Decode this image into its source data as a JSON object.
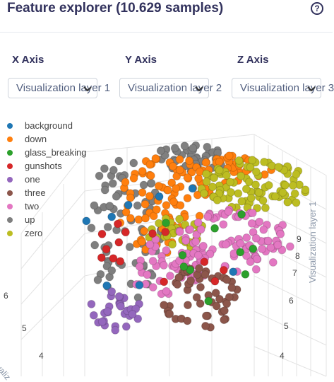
{
  "header": {
    "title": "Feature explorer (10.629 samples)",
    "help_icon": "help-circle-icon"
  },
  "axes": [
    {
      "label": "X Axis",
      "selected": "Visualization layer 1"
    },
    {
      "label": "Y Axis",
      "selected": "Visualization layer 2"
    },
    {
      "label": "Z Axis",
      "selected": "Visualization layer 3"
    }
  ],
  "legend": [
    {
      "name": "background",
      "color": "#1f77b4"
    },
    {
      "name": "down",
      "color": "#ff7f0e"
    },
    {
      "name": "glass_breaking",
      "color": "#2ca02c"
    },
    {
      "name": "gunshots",
      "color": "#d62728"
    },
    {
      "name": "one",
      "color": "#9467bd"
    },
    {
      "name": "three",
      "color": "#8c564b"
    },
    {
      "name": "two",
      "color": "#e377c2"
    },
    {
      "name": "up",
      "color": "#7f7f7f"
    },
    {
      "name": "zero",
      "color": "#bcbd22"
    }
  ],
  "plot": {
    "z_axis_title": "Visualization layer 1",
    "z_ticks": [
      "9",
      "8",
      "7",
      "6",
      "5",
      "4"
    ],
    "left_ticks": [
      "6",
      "5",
      "4"
    ],
    "left_axis_title_fragment": "ualiz"
  }
}
